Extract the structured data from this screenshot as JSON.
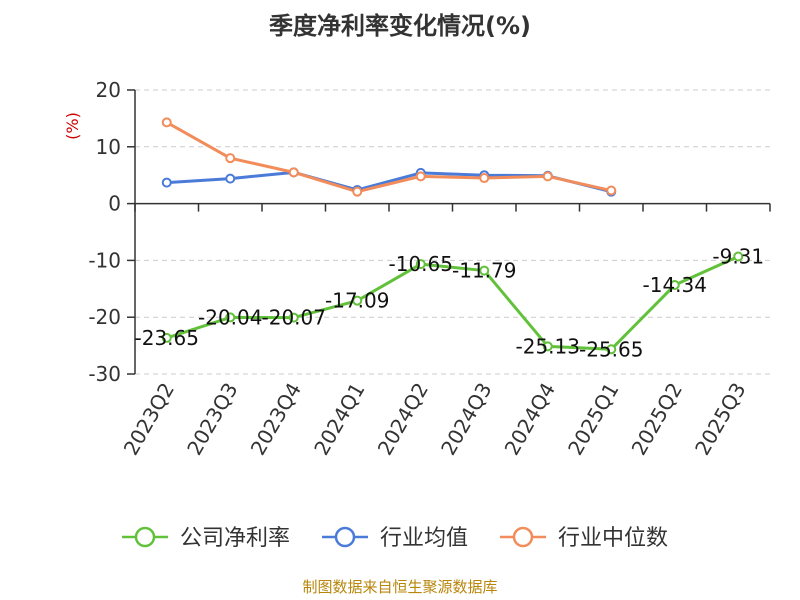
{
  "chart_data": {
    "type": "line",
    "title": "季度净利率变化情况(%)",
    "ylabel": "(%)",
    "ylim": [
      -30,
      20
    ],
    "yticks": [
      20,
      10,
      0,
      -10,
      -20,
      -30
    ],
    "grid": true,
    "legend_position": "bottom",
    "categories": [
      "2023Q2",
      "2023Q3",
      "2023Q4",
      "2024Q1",
      "2024Q2",
      "2024Q3",
      "2024Q4",
      "2025Q1",
      "2025Q2",
      "2025Q3"
    ],
    "series": [
      {
        "name": "公司净利率",
        "color": "#62c13a",
        "values": [
          -23.65,
          -20.04,
          -20.07,
          -17.09,
          -10.65,
          -11.79,
          -25.13,
          -25.65,
          -14.34,
          -9.31
        ],
        "labels": [
          "-23.65",
          "-20.04",
          "-20.07",
          "-17.09",
          "-10.65",
          "-11.79",
          "-25.13",
          "-25.65",
          "-14.34",
          "-9.31"
        ]
      },
      {
        "name": "行业均值",
        "color": "#4a7bd9",
        "values": [
          3.7,
          4.4,
          5.5,
          2.4,
          5.4,
          5.0,
          4.9,
          2.1,
          null,
          null
        ]
      },
      {
        "name": "行业中位数",
        "color": "#f28c5a",
        "values": [
          14.3,
          8.0,
          5.5,
          2.1,
          4.8,
          4.5,
          4.8,
          2.3,
          null,
          null
        ]
      }
    ]
  },
  "source": "制图数据来自恒生聚源数据库"
}
